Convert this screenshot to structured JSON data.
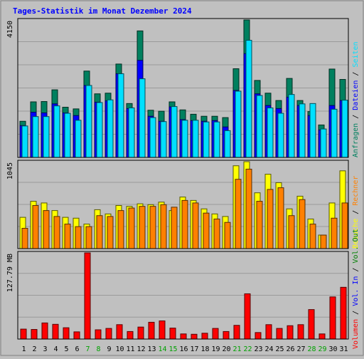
{
  "title": "Tages-Statistik im Monat Dezember 2024",
  "colors": {
    "background": "#c0c0c0",
    "frame": "#808080",
    "grid": "#9a9a9a",
    "title": "#0000ff",
    "hits": "#00805f",
    "files": "#0000ff",
    "pages": "#00e0ff",
    "visits": "#ffff00",
    "sites": "#ff8000",
    "volume": "#ff0000",
    "weekday_label": "#008000",
    "weekend_label": "#00a000"
  },
  "legend_top": {
    "items": [
      {
        "text": "Anfragen",
        "color": "#00805f"
      },
      {
        "text": "Dateien",
        "color": "#0000ff"
      },
      {
        "text": "Seiten",
        "color": "#00e0ff"
      }
    ]
  },
  "legend_mid": {
    "items": [
      {
        "text": "Besuche",
        "color": "#ffff00"
      },
      {
        "text": "Rechner",
        "color": "#ff8000"
      }
    ]
  },
  "legend_bot": {
    "items": [
      {
        "text": "Volumen",
        "color": "#ff0000"
      },
      {
        "text": "Vol. In",
        "color": "#0000ff"
      },
      {
        "text": "Vol. Out",
        "color": "#008000"
      }
    ]
  },
  "chart_data": [
    {
      "type": "bar",
      "panel": "requests",
      "ymax_label": "4150",
      "ylim": [
        0,
        4150
      ],
      "categories": [
        "1",
        "2",
        "3",
        "4",
        "5",
        "6",
        "7",
        "8",
        "9",
        "10",
        "11",
        "12",
        "13",
        "14",
        "15",
        "16",
        "17",
        "18",
        "19",
        "20",
        "21",
        "22",
        "23",
        "24",
        "25",
        "26",
        "27",
        "28",
        "29",
        "30",
        "31"
      ],
      "weekend_days": [
        "7",
        "8",
        "14",
        "15",
        "21",
        "22",
        "28",
        "29"
      ],
      "series": [
        {
          "name": "Anfragen",
          "values": [
            1080,
            1660,
            1670,
            2020,
            1500,
            1450,
            2580,
            1900,
            1920,
            2790,
            1610,
            3780,
            1410,
            1380,
            1660,
            1420,
            1290,
            1230,
            1230,
            1190,
            2650,
            4140,
            2300,
            1920,
            1700,
            2360,
            1700,
            1370,
            970,
            2640,
            2330
          ]
        },
        {
          "name": "Dateien",
          "values": [
            950,
            1350,
            1330,
            1600,
            1330,
            1250,
            2150,
            1650,
            1690,
            2500,
            1460,
            2900,
            1230,
            1080,
            1510,
            1130,
            1100,
            1080,
            1100,
            910,
            2000,
            3100,
            1900,
            1550,
            1460,
            1800,
            1550,
            1250,
            820,
            1550,
            1700
          ]
        },
        {
          "name": "Seiten",
          "values": [
            940,
            1220,
            1220,
            1540,
            1320,
            1110,
            2150,
            1640,
            1720,
            2500,
            1480,
            2350,
            1190,
            1070,
            1520,
            1110,
            1110,
            1060,
            1060,
            800,
            1980,
            3500,
            1850,
            1480,
            1320,
            1880,
            1600,
            1610,
            850,
            1440,
            1710
          ]
        }
      ]
    },
    {
      "type": "bar",
      "panel": "visits",
      "ymax_label": "1045",
      "ylim": [
        0,
        1045
      ],
      "categories": [
        "1",
        "2",
        "3",
        "4",
        "5",
        "6",
        "7",
        "8",
        "9",
        "10",
        "11",
        "12",
        "13",
        "14",
        "15",
        "16",
        "17",
        "18",
        "19",
        "20",
        "21",
        "22",
        "23",
        "24",
        "25",
        "26",
        "27",
        "28",
        "29",
        "30",
        "31"
      ],
      "series": [
        {
          "name": "Besuche",
          "values": [
            370,
            560,
            540,
            450,
            370,
            360,
            290,
            460,
            410,
            510,
            500,
            530,
            520,
            550,
            450,
            610,
            570,
            470,
            410,
            380,
            980,
            1045,
            660,
            880,
            780,
            470,
            620,
            350,
            160,
            540,
            920
          ]
        },
        {
          "name": "Rechner",
          "values": [
            240,
            510,
            450,
            380,
            290,
            260,
            260,
            390,
            380,
            450,
            480,
            500,
            500,
            520,
            490,
            570,
            540,
            420,
            350,
            310,
            820,
            940,
            560,
            700,
            720,
            390,
            580,
            290,
            160,
            360,
            540
          ]
        }
      ]
    },
    {
      "type": "bar",
      "panel": "volume",
      "ymax_label": "127.79 MB",
      "ylim": [
        0,
        127.79
      ],
      "categories": [
        "1",
        "2",
        "3",
        "4",
        "5",
        "6",
        "7",
        "8",
        "9",
        "10",
        "11",
        "12",
        "13",
        "14",
        "15",
        "16",
        "17",
        "18",
        "19",
        "20",
        "21",
        "22",
        "23",
        "24",
        "25",
        "26",
        "27",
        "28",
        "29",
        "30",
        "31"
      ],
      "series": [
        {
          "name": "Volumen",
          "values": [
            14.5,
            14.0,
            23.5,
            21.5,
            16.5,
            10.5,
            127.8,
            13.5,
            15.5,
            21.0,
            11.0,
            17.5,
            24.5,
            26.5,
            16.0,
            7.5,
            7.0,
            8.5,
            15.5,
            11.0,
            20.0,
            66.0,
            9.5,
            21.0,
            15.5,
            19.5,
            21.0,
            43.0,
            7.5,
            61.5,
            75.5
          ]
        }
      ]
    }
  ]
}
